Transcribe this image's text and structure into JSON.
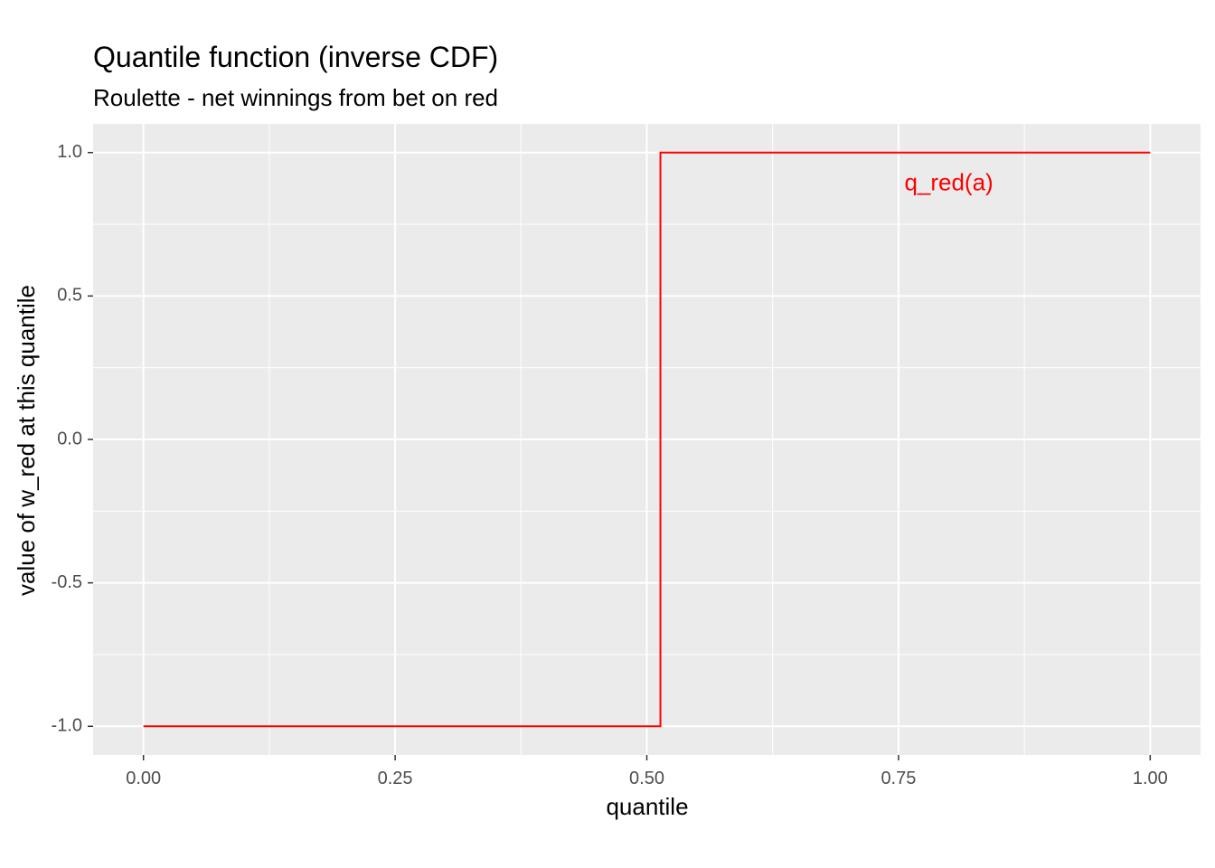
{
  "chart_data": {
    "type": "line",
    "title": "Quantile function (inverse CDF)",
    "subtitle": "Roulette - net winnings from bet on red",
    "xlabel": "quantile",
    "ylabel": "value of w_red at this quantile",
    "xlim": [
      -0.05,
      1.05
    ],
    "ylim": [
      -1.1,
      1.1
    ],
    "x_ticks": [
      0,
      0.25,
      0.5,
      0.75,
      1
    ],
    "x_tick_labels": [
      "0.00",
      "0.25",
      "0.50",
      "0.75",
      "1.00"
    ],
    "y_ticks": [
      -1,
      -0.5,
      0,
      0.5,
      1
    ],
    "y_tick_labels": [
      "-1.0",
      "-0.5",
      "0.0",
      "0.5",
      "1.0"
    ],
    "grid": true,
    "series": [
      {
        "color": "#ff0000",
        "x": [
          0,
          0.5135,
          0.5135,
          1
        ],
        "y": [
          -1,
          -1,
          1,
          1
        ]
      }
    ],
    "annotations": [
      {
        "text": "q_red(a)",
        "x": 0.8,
        "y": 0.89,
        "color": "#ff0000"
      }
    ]
  },
  "colors": {
    "panel_background": "#ebebeb",
    "grid": "#ffffff",
    "line": "#ff0000"
  }
}
